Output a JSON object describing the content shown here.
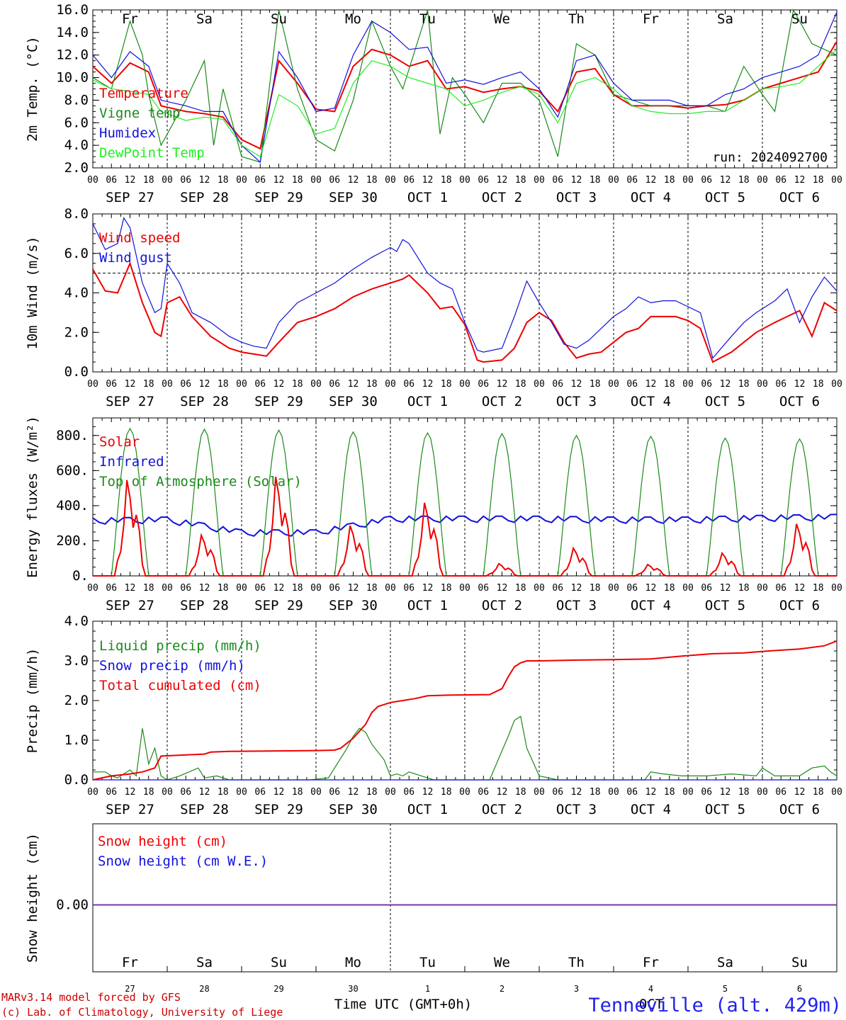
{
  "colors": {
    "red": "#ee0000",
    "green": "#1a8a1a",
    "blue": "#1111dd",
    "lime": "#22ee22",
    "purple": "#7733aa",
    "black": "#000000",
    "weekend": "#ee0000"
  },
  "days": [
    {
      "dow": "Fr",
      "date": "SEP 27",
      "num": "27",
      "weekend": false
    },
    {
      "dow": "Sa",
      "date": "SEP 28",
      "num": "28",
      "weekend": true
    },
    {
      "dow": "Su",
      "date": "SEP 29",
      "num": "29",
      "weekend": true
    },
    {
      "dow": "Mo",
      "date": "SEP 30",
      "num": "30",
      "weekend": false
    },
    {
      "dow": "Tu",
      "date": "OCT  1",
      "num": "1",
      "weekend": false
    },
    {
      "dow": "We",
      "date": "OCT  2",
      "num": "2",
      "weekend": false
    },
    {
      "dow": "Th",
      "date": "OCT  3",
      "num": "3",
      "weekend": false
    },
    {
      "dow": "Fr",
      "date": "OCT  4",
      "num": "4",
      "weekend": false
    },
    {
      "dow": "Sa",
      "date": "OCT  5",
      "num": "5",
      "weekend": true
    },
    {
      "dow": "Su",
      "date": "OCT  6",
      "num": "6",
      "weekend": true
    }
  ],
  "hour_labels": [
    "00",
    "06",
    "12",
    "18"
  ],
  "run_label": "run: 2024092700",
  "x_axis_title": "Time UTC (GMT+0h)",
  "month_label": "OCT",
  "footer": {
    "line1": "MARv3.14 model forced by GFS",
    "line2": "(c) Lab. of Climatology, University of Liege",
    "station": "Tenneville (alt. 429m)"
  },
  "chart_data": [
    {
      "id": "temperature",
      "type": "line",
      "ylabel": "2m Temp. (°C)",
      "ylim": [
        2,
        16
      ],
      "yticks": [
        "2.0",
        "4.0",
        "6.0",
        "8.0",
        "10.0",
        "12.0",
        "14.0",
        "16.0"
      ],
      "x_unit": "hours since SEP 27 00 UTC",
      "xlim": [
        0,
        240
      ],
      "series": [
        {
          "name": "Temperature",
          "color": "red",
          "x": [
            0,
            6,
            12,
            18,
            22,
            30,
            36,
            42,
            48,
            54,
            60,
            66,
            72,
            78,
            84,
            90,
            96,
            102,
            108,
            114,
            120,
            126,
            132,
            138,
            144,
            150,
            156,
            162,
            168,
            174,
            180,
            186,
            192,
            198,
            204,
            210,
            216,
            222,
            228,
            234,
            240
          ],
          "y": [
            11,
            9.5,
            11.3,
            10.5,
            7.5,
            7,
            6.8,
            6.5,
            4.5,
            3.7,
            11.5,
            9.5,
            7.2,
            7,
            11,
            12.5,
            12,
            11,
            11.5,
            9,
            9.2,
            8.7,
            9,
            9.2,
            8.8,
            7,
            10.5,
            10.8,
            8.5,
            7.5,
            7.5,
            7.5,
            7.3,
            7.5,
            7.6,
            8,
            9,
            9.5,
            10,
            10.5,
            13.2
          ]
        },
        {
          "name": "Vigne temp",
          "color": "green",
          "x": [
            0,
            6,
            12,
            16,
            18,
            22,
            30,
            36,
            39,
            42,
            48,
            54,
            60,
            66,
            72,
            78,
            84,
            90,
            96,
            100,
            108,
            112,
            116,
            120,
            126,
            132,
            138,
            144,
            150,
            156,
            162,
            168,
            174,
            180,
            186,
            192,
            198,
            204,
            210,
            216,
            220,
            226,
            232,
            240
          ],
          "y": [
            10,
            9,
            15,
            12,
            8.5,
            4,
            8,
            11.5,
            4,
            9,
            3,
            2.5,
            16,
            9,
            4.5,
            3.5,
            8,
            15,
            11,
            9,
            16,
            5,
            10,
            8.5,
            6,
            9.5,
            9.5,
            8,
            3,
            13,
            12,
            8.5,
            8,
            7.5,
            7.5,
            7.5,
            7.5,
            7,
            11,
            8.5,
            7,
            16,
            13,
            12
          ]
        },
        {
          "name": "Humidex",
          "color": "blue",
          "x": [
            0,
            6,
            12,
            18,
            22,
            30,
            36,
            42,
            48,
            54,
            60,
            66,
            72,
            78,
            84,
            90,
            96,
            102,
            108,
            114,
            120,
            126,
            132,
            138,
            144,
            150,
            156,
            162,
            168,
            174,
            180,
            186,
            192,
            198,
            204,
            210,
            216,
            222,
            228,
            234,
            240
          ],
          "y": [
            12,
            10,
            12.3,
            11,
            8,
            7.5,
            7,
            7,
            4,
            2.5,
            12.3,
            10,
            7,
            7.3,
            12,
            15,
            14,
            12.5,
            12.7,
            9.5,
            9.8,
            9.4,
            10,
            10.5,
            9,
            6.5,
            11.5,
            12,
            9.5,
            8,
            8,
            8,
            7.5,
            7.5,
            8.5,
            9,
            10,
            10.5,
            11,
            12,
            15.8
          ]
        },
        {
          "name": "DewPoint Temp",
          "color": "lime",
          "x": [
            0,
            6,
            12,
            18,
            22,
            30,
            36,
            42,
            48,
            54,
            60,
            66,
            72,
            78,
            84,
            90,
            96,
            102,
            108,
            114,
            120,
            126,
            132,
            138,
            144,
            150,
            156,
            162,
            168,
            174,
            180,
            186,
            192,
            198,
            204,
            210,
            216,
            222,
            228,
            234,
            240
          ],
          "y": [
            9.8,
            9,
            8.8,
            8.5,
            7,
            6.2,
            6.5,
            6.3,
            4,
            3,
            8.5,
            7.5,
            5,
            5.5,
            9.5,
            11.5,
            11,
            10,
            9.5,
            9,
            7.5,
            8,
            8.7,
            9.2,
            8.5,
            6,
            9.5,
            10,
            9,
            7.5,
            7,
            6.8,
            6.8,
            7,
            7,
            8,
            9,
            9.2,
            9.5,
            11,
            12.5
          ]
        }
      ],
      "legend_position": "left"
    },
    {
      "id": "wind",
      "type": "line",
      "ylabel": "10m Wind (m/s)",
      "ylim": [
        0,
        8
      ],
      "yticks": [
        "0.0",
        "2.0",
        "4.0",
        "6.0",
        "8.0"
      ],
      "reference_line": 5,
      "x_unit": "hours since SEP 27 00 UTC",
      "xlim": [
        0,
        240
      ],
      "series": [
        {
          "name": "Wind speed",
          "color": "red",
          "x": [
            0,
            4,
            8,
            12,
            16,
            20,
            22,
            24,
            28,
            32,
            38,
            44,
            48,
            52,
            56,
            60,
            66,
            72,
            78,
            84,
            90,
            96,
            100,
            102,
            108,
            112,
            116,
            120,
            124,
            126,
            132,
            136,
            140,
            144,
            148,
            152,
            156,
            160,
            164,
            168,
            172,
            176,
            180,
            184,
            188,
            192,
            196,
            200,
            206,
            210,
            214,
            220,
            224,
            228,
            232,
            236,
            240
          ],
          "y": [
            5.2,
            4.1,
            4,
            5.5,
            3.5,
            2,
            1.8,
            3.5,
            3.8,
            2.8,
            1.8,
            1.2,
            1,
            0.9,
            0.8,
            1.5,
            2.5,
            2.8,
            3.2,
            3.8,
            4.2,
            4.5,
            4.7,
            4.9,
            4,
            3.2,
            3.3,
            2.4,
            0.6,
            0.5,
            0.6,
            1.2,
            2.5,
            3,
            2.6,
            1.5,
            0.7,
            0.9,
            1,
            1.5,
            2,
            2.2,
            2.8,
            2.8,
            2.8,
            2.6,
            2.2,
            0.5,
            1,
            1.5,
            2,
            2.5,
            2.8,
            3.1,
            1.8,
            3.5,
            3.1
          ]
        },
        {
          "name": "Wind gust",
          "color": "blue",
          "x": [
            0,
            4,
            8,
            10,
            12,
            16,
            20,
            22,
            24,
            28,
            32,
            38,
            44,
            48,
            52,
            56,
            60,
            66,
            72,
            78,
            84,
            90,
            96,
            98,
            100,
            102,
            108,
            112,
            116,
            120,
            124,
            126,
            132,
            136,
            140,
            144,
            148,
            152,
            156,
            160,
            164,
            168,
            172,
            176,
            180,
            184,
            188,
            192,
            196,
            200,
            206,
            210,
            214,
            220,
            224,
            228,
            232,
            236,
            240
          ],
          "y": [
            7.5,
            6.2,
            6.5,
            7.8,
            7.3,
            4.5,
            3,
            3.2,
            5.5,
            4.5,
            3,
            2.5,
            1.8,
            1.5,
            1.3,
            1.2,
            2.5,
            3.5,
            4,
            4.5,
            5.2,
            5.8,
            6.3,
            6.1,
            6.7,
            6.5,
            5,
            4.5,
            4.2,
            2.5,
            1.1,
            1,
            1.2,
            2.8,
            4.6,
            3.5,
            2.5,
            1.4,
            1.2,
            1.6,
            2.2,
            2.8,
            3.2,
            3.8,
            3.5,
            3.6,
            3.6,
            3.3,
            3,
            0.7,
            1.8,
            2.5,
            3,
            3.6,
            4.2,
            2.5,
            3.8,
            4.8,
            4.1
          ]
        }
      ],
      "legend_position": "left"
    },
    {
      "id": "energy",
      "type": "line",
      "ylabel": "Energy fluxes (W/m²)",
      "ylim": [
        0,
        900
      ],
      "yticks": [
        "0.",
        "200.",
        "400.",
        "600.",
        "800."
      ],
      "x_unit": "hours since SEP 27 00 UTC",
      "xlim": [
        0,
        240
      ],
      "series": [
        {
          "name": "Solar",
          "color": "red",
          "daily_peaks": [
            590,
            250,
            610,
            310,
            450,
            75,
            170,
            70,
            140,
            320
          ]
        },
        {
          "name": "Infrared",
          "color": "blue",
          "base_values": [
            330,
            335,
            262,
            262,
            340,
            340,
            340,
            335,
            335,
            345,
            350
          ]
        },
        {
          "name": "Top of Atmosphere (Solar)",
          "color": "green",
          "daily_peaks": [
            840,
            835,
            830,
            820,
            815,
            810,
            800,
            795,
            785,
            780
          ]
        }
      ],
      "legend_position": "left"
    },
    {
      "id": "precip",
      "type": "line",
      "ylabel": "Precip (mm/h)",
      "ylim": [
        0,
        4
      ],
      "yticks": [
        "0.0",
        "1.0",
        "2.0",
        "3.0",
        "4.0"
      ],
      "x_unit": "hours since SEP 27 00 UTC",
      "xlim": [
        0,
        240
      ],
      "series": [
        {
          "name": "Liquid precip (mm/h)",
          "color": "green",
          "x": [
            0,
            4,
            6,
            8,
            12,
            14,
            16,
            18,
            20,
            22,
            24,
            28,
            34,
            36,
            40,
            44,
            60,
            70,
            76,
            82,
            84,
            86,
            88,
            90,
            94,
            96,
            98,
            100,
            102,
            106,
            110,
            118,
            128,
            134,
            136,
            138,
            140,
            144,
            150,
            156,
            178,
            180,
            184,
            190,
            198,
            206,
            214,
            216,
            220,
            228,
            232,
            236,
            238,
            240
          ],
          "y": [
            0.2,
            0.2,
            0.1,
            0.05,
            0.25,
            0.1,
            1.3,
            0.4,
            0.8,
            0.1,
            0,
            0.1,
            0.3,
            0.05,
            0.1,
            0,
            0,
            0,
            0.05,
            0.8,
            1.1,
            1.3,
            1.2,
            0.9,
            0.5,
            0.1,
            0.15,
            0.1,
            0.2,
            0.1,
            0,
            0,
            0,
            1.1,
            1.5,
            1.6,
            0.8,
            0.1,
            0,
            0,
            0,
            0.2,
            0.15,
            0.1,
            0.1,
            0.15,
            0.1,
            0.3,
            0.1,
            0.1,
            0.3,
            0.35,
            0.2,
            0.1
          ]
        },
        {
          "name": "Snow precip (mm/h)",
          "color": "blue",
          "x": [
            0,
            240
          ],
          "y": [
            0,
            0
          ]
        },
        {
          "name": "Total cumulated (cm)",
          "color": "red",
          "x": [
            0,
            6,
            12,
            16,
            20,
            22,
            36,
            38,
            44,
            60,
            72,
            78,
            80,
            84,
            88,
            90,
            92,
            96,
            100,
            104,
            108,
            116,
            128,
            132,
            134,
            136,
            138,
            140,
            144,
            156,
            168,
            180,
            190,
            200,
            210,
            218,
            228,
            236,
            240
          ],
          "y": [
            0,
            0.1,
            0.15,
            0.2,
            0.3,
            0.6,
            0.65,
            0.7,
            0.72,
            0.73,
            0.74,
            0.75,
            0.8,
            1.05,
            1.4,
            1.7,
            1.85,
            1.95,
            2.0,
            2.05,
            2.12,
            2.14,
            2.15,
            2.3,
            2.6,
            2.85,
            2.95,
            3.0,
            3.0,
            3.02,
            3.03,
            3.05,
            3.12,
            3.18,
            3.2,
            3.25,
            3.3,
            3.38,
            3.5
          ]
        }
      ],
      "legend_position": "left"
    },
    {
      "id": "snow",
      "type": "line",
      "ylabel": "Snow height (cm)",
      "yticks": [
        "0.00"
      ],
      "x_unit": "hours since SEP 27 00 UTC",
      "xlim": [
        0,
        240
      ],
      "series": [
        {
          "name": "Snow height (cm)",
          "color": "red",
          "x": [
            0,
            240
          ],
          "y": [
            0,
            0
          ]
        },
        {
          "name": "Snow height (cm W.E.)",
          "color": "blue",
          "x": [
            0,
            240
          ],
          "y": [
            0,
            0
          ]
        }
      ],
      "legend_position": "left"
    }
  ]
}
